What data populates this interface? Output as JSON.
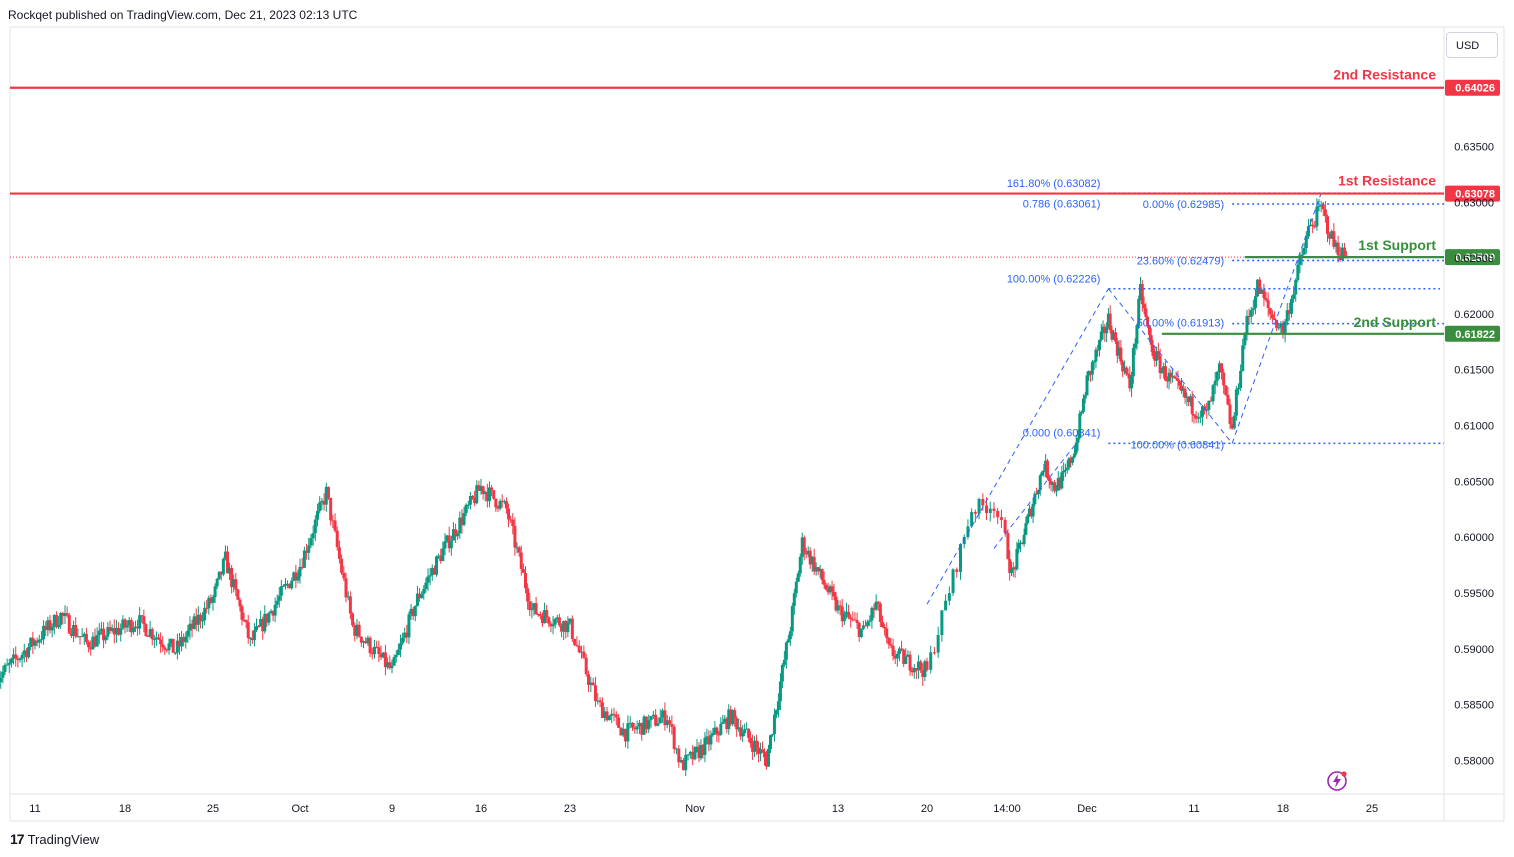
{
  "header": {
    "attribution": "Rockqet published on TradingView.com, Dec 21, 2023 02:13 UTC"
  },
  "footer": {
    "brand_mark": "17",
    "brand_name": "TradingView"
  },
  "currency_button": "USD",
  "icons": {
    "brand": "tradingview-logo-icon",
    "bolt": "lightning-bolt-icon"
  },
  "colors": {
    "up": "#089981",
    "down": "#f23645",
    "resistance": "#f23645",
    "support": "#388e3c",
    "fib": "#2962ff"
  },
  "chart_data": {
    "type": "candlestick",
    "y_ticks": [
      "0.63500",
      "0.63000",
      "0.62500",
      "0.62000",
      "0.61500",
      "0.61000",
      "0.60500",
      "0.60000",
      "0.59500",
      "0.59000",
      "0.58500",
      "0.58000"
    ],
    "x_ticks": [
      {
        "label": "11",
        "date": "2023-09-11"
      },
      {
        "label": "18",
        "date": "2023-09-18"
      },
      {
        "label": "25",
        "date": "2023-09-25"
      },
      {
        "label": "Oct",
        "date": "2023-10-02"
      },
      {
        "label": "9",
        "date": "2023-10-09"
      },
      {
        "label": "16",
        "date": "2023-10-16"
      },
      {
        "label": "23",
        "date": "2023-10-23"
      },
      {
        "label": "Nov",
        "date": "2023-11-01"
      },
      {
        "label": "13",
        "date": "2023-11-13"
      },
      {
        "label": "20",
        "date": "2023-11-20"
      },
      {
        "label": "14:00",
        "date": "2023-11-23 14:00"
      },
      {
        "label": "Dec",
        "date": "2023-12-01"
      },
      {
        "label": "11",
        "date": "2023-12-11"
      },
      {
        "label": "18",
        "date": "2023-12-18"
      },
      {
        "label": "25",
        "date": "2023-12-25"
      }
    ],
    "y_range": [
      0.577,
      0.6457
    ],
    "current_price": "0.62509",
    "levels": [
      {
        "name": "2nd Resistance",
        "value": 0.64026,
        "value_label": "0.64026",
        "kind": "resistance"
      },
      {
        "name": "1st Resistance",
        "value": 0.63078,
        "value_label": "0.63078",
        "kind": "resistance"
      },
      {
        "name": "1st Support",
        "value": 0.62509,
        "value_label": "0.62509",
        "kind": "support"
      },
      {
        "name": "2nd Support",
        "value": 0.61822,
        "value_label": "0.61822",
        "kind": "support"
      }
    ],
    "fib_labels": [
      {
        "text": "161.80% (0.63082)",
        "value": 0.63082
      },
      {
        "text": "0.786 (0.63061)",
        "value": 0.63061
      },
      {
        "text": "0.00% (0.62985)",
        "value": 0.62985
      },
      {
        "text": "23.60% (0.62479)",
        "value": 0.62479
      },
      {
        "text": "100.00% (0.62226)",
        "value": 0.62226
      },
      {
        "text": "50.00% (0.61913)",
        "value": 0.61913
      },
      {
        "text": "0.000 (0.60841)",
        "value": 0.60841
      },
      {
        "text": "100.00% (0.60841)",
        "value": 0.60841
      }
    ],
    "anchors": [
      [
        "2023-09-08",
        0.5873
      ],
      [
        "2023-09-13",
        0.593
      ],
      [
        "2023-09-15",
        0.5905
      ],
      [
        "2023-09-19",
        0.5925
      ],
      [
        "2023-09-22",
        0.5898
      ],
      [
        "2023-09-25",
        0.5945
      ],
      [
        "2023-09-26",
        0.598
      ],
      [
        "2023-09-28",
        0.5905
      ],
      [
        "2023-10-02",
        0.5975
      ],
      [
        "2023-10-04",
        0.604
      ],
      [
        "2023-10-06",
        0.592
      ],
      [
        "2023-10-09",
        0.588
      ],
      [
        "2023-10-11",
        0.5945
      ],
      [
        "2023-10-13",
        0.5988
      ],
      [
        "2023-10-16",
        0.6045
      ],
      [
        "2023-10-18",
        0.6025
      ],
      [
        "2023-10-20",
        0.5935
      ],
      [
        "2023-10-23",
        0.592
      ],
      [
        "2023-10-25",
        0.585
      ],
      [
        "2023-10-27",
        0.5825
      ],
      [
        "2023-10-30",
        0.584
      ],
      [
        "2023-10-31",
        0.5795
      ],
      [
        "2023-11-02",
        0.5815
      ],
      [
        "2023-11-04",
        0.584
      ],
      [
        "2023-11-07",
        0.58
      ],
      [
        "2023-11-08",
        0.586
      ],
      [
        "2023-11-09",
        0.592
      ],
      [
        "2023-11-10",
        0.5995
      ],
      [
        "2023-11-13",
        0.5935
      ],
      [
        "2023-11-15",
        0.5915
      ],
      [
        "2023-11-16",
        0.594
      ],
      [
        "2023-11-17",
        0.5898
      ],
      [
        "2023-11-20",
        0.588
      ],
      [
        "2023-11-22",
        0.6025
      ],
      [
        "2023-11-23",
        0.603
      ],
      [
        "2023-11-24",
        0.5965
      ],
      [
        "2023-11-27",
        0.6065
      ],
      [
        "2023-11-28",
        0.6045
      ],
      [
        "2023-11-29",
        0.6055
      ],
      [
        "2023-11-30",
        0.6085
      ],
      [
        "2023-12-01",
        0.614
      ],
      [
        "2023-12-03",
        0.6195
      ],
      [
        "2023-12-04",
        0.6165
      ],
      [
        "2023-12-05",
        0.6135
      ],
      [
        "2023-12-06",
        0.622
      ],
      [
        "2023-12-07",
        0.617
      ],
      [
        "2023-12-08",
        0.615
      ],
      [
        "2023-12-11",
        0.6115
      ],
      [
        "2023-12-12",
        0.611
      ],
      [
        "2023-12-13",
        0.615
      ],
      [
        "2023-12-14",
        0.6095
      ],
      [
        "2023-12-15",
        0.6185
      ],
      [
        "2023-12-16",
        0.6225
      ],
      [
        "2023-12-17",
        0.62
      ],
      [
        "2023-12-18",
        0.6185
      ],
      [
        "2023-12-19",
        0.623
      ],
      [
        "2023-12-20",
        0.6275
      ],
      [
        "2023-12-21",
        0.6295
      ],
      [
        "2023-12-22",
        0.6262
      ],
      [
        "2023-12-23",
        0.625
      ]
    ]
  }
}
